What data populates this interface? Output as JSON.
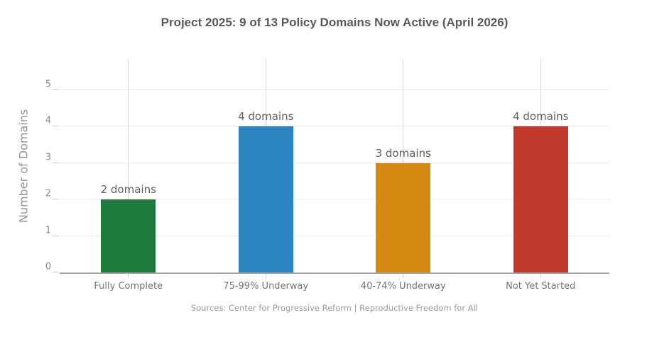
{
  "chart_data": {
    "type": "bar",
    "title": "Project 2025: 9 of 13 Policy Domains Now Active (April 2026)",
    "xlabel": "",
    "ylabel": "Number of Domains",
    "caption": "Sources: Center for Progressive Reform | Reproductive Freedom for All",
    "categories": [
      "Fully Complete",
      "75-99% Underway",
      "40-74% Underway",
      "Not Yet Started"
    ],
    "values": [
      2,
      4,
      3,
      4
    ],
    "bar_labels": [
      "2 domains",
      "4 domains",
      "3 domains",
      "4 domains"
    ],
    "bar_colors": [
      "#1e7b3e",
      "#2e86c1",
      "#d68910",
      "#c0392b"
    ],
    "yticks": [
      0,
      1,
      2,
      3,
      4,
      5
    ],
    "ylim": [
      0,
      5
    ],
    "grid": true,
    "legend": "none"
  }
}
